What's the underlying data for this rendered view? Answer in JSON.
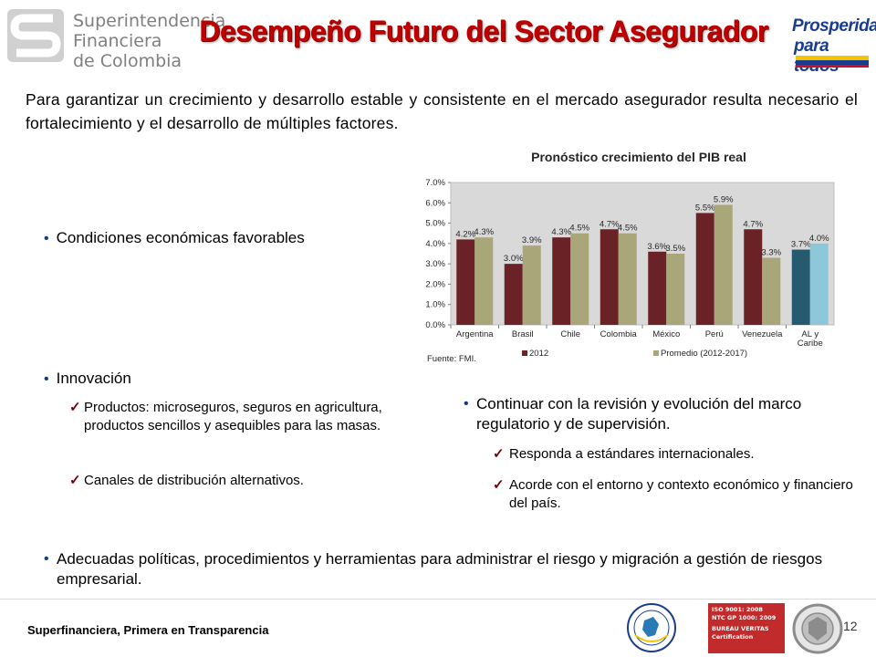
{
  "header": {
    "logo_lines": [
      "Superintendencia",
      "Financiera",
      "de Colombia"
    ],
    "title": "Desempeño Futuro del Sector Asegurador",
    "prosperidad_line1": "Prosperidad",
    "prosperidad_line2": "para todos"
  },
  "intro": "Para garantizar un crecimiento y desarrollo estable y consistente en el mercado asegurador resulta necesario el fortalecimiento y el desarrollo de múltiples factores.",
  "bullets": {
    "condiciones": "Condiciones económicas favorables",
    "innovacion": {
      "label": "Innovación",
      "items": [
        "Productos: microseguros, seguros en agricultura, productos sencillos y asequibles para las masas.",
        "Canales de distribución alternativos."
      ]
    },
    "regulatorio": {
      "label": "Continuar con la revisión y evolución del marco regulatorio y de supervisión.",
      "items": [
        "Responda a estándares internacionales.",
        "Acorde con el entorno y contexto económico y financiero del país."
      ]
    },
    "politicas": "Adecuadas políticas, procedimientos y herramientas para administrar el riesgo y migración a gestión de riesgos empresarial."
  },
  "chart_data": {
    "type": "bar",
    "title": "Pronóstico crecimiento del PIB real",
    "categories": [
      "Argentina",
      "Brasil",
      "Chile",
      "Colombia",
      "México",
      "Perú",
      "Venezuela",
      "AL y Caribe"
    ],
    "series": [
      {
        "name": "2012",
        "values": [
          4.2,
          3.0,
          4.3,
          4.7,
          3.6,
          5.5,
          4.7,
          3.7
        ],
        "labels": [
          "4.2%",
          "3.0%",
          "4.3%",
          "4.7%",
          "3.6%",
          "5.5%",
          "4.7%",
          "3.7%"
        ]
      },
      {
        "name": "Promedio (2012-2017)",
        "values": [
          4.3,
          3.9,
          4.5,
          4.5,
          3.5,
          5.9,
          3.3,
          4.0
        ],
        "labels": [
          "4.3%",
          "3.9%",
          "4.5%",
          "4.5%",
          "3.5%",
          "5.9%",
          "3.3%",
          "4.0%"
        ]
      }
    ],
    "yticks": [
      "0.0%",
      "1.0%",
      "2.0%",
      "3.0%",
      "4.0%",
      "5.0%",
      "6.0%",
      "7.0%"
    ],
    "ylim": [
      0,
      7
    ],
    "source": "Fuente: FMI.",
    "legend_position": "bottom",
    "colors": {
      "series1": "#6b2226",
      "series2": "#a9a77a",
      "series1_highlight": "#265a6e",
      "series2_highlight": "#8fc7da",
      "plot_bg": "#d9d9d9"
    }
  },
  "footer": {
    "tagline": "Superfinanciera, Primera en Transparencia",
    "page_number": "12",
    "iso_lines": [
      "ISO 9001: 2008",
      "NTC GP 1000: 2009",
      "BUREAU VERITAS",
      "Certification"
    ]
  }
}
